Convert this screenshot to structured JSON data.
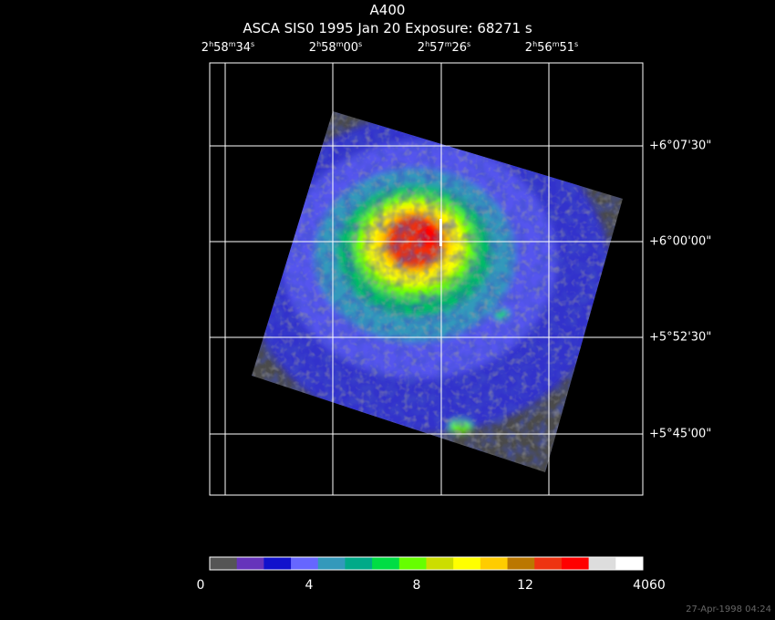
{
  "title": "A400",
  "subtitle": "ASCA SIS0   1995 Jan 20    Exposure: 68271 s",
  "ra_labels": [
    {
      "h": "2",
      "m": "58",
      "s": "34"
    },
    {
      "h": "2",
      "m": "58",
      "s": "00"
    },
    {
      "h": "2",
      "m": "57",
      "s": "26"
    },
    {
      "h": "2",
      "m": "56",
      "s": "51"
    }
  ],
  "dec_labels": [
    "+6°07'30\"",
    "+6°00'00\"",
    "+5°52'30\"",
    "+5°45'00\""
  ],
  "colorbar": {
    "ticks": [
      "0",
      "4",
      "8",
      "12",
      "4060"
    ],
    "colors": [
      "#555555",
      "#6633bb",
      "#1111cc",
      "#6666ff",
      "#3399bb",
      "#00aa88",
      "#00dd44",
      "#66ff00",
      "#ccdd00",
      "#ffff00",
      "#ffcc00",
      "#bb7700",
      "#ee3311",
      "#ff0000",
      "#dddddd",
      "#ffffff"
    ]
  },
  "timestamp": "27-Apr-1998 04:24"
}
